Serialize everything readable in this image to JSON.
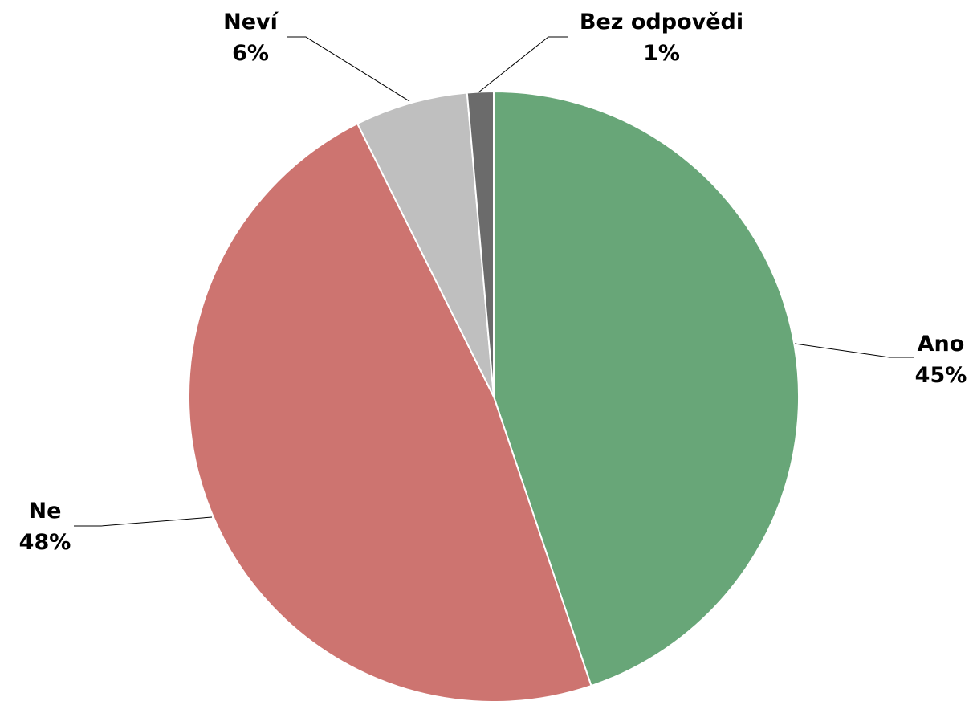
{
  "chart_data": {
    "type": "pie",
    "title": "",
    "slices": [
      {
        "name": "Ano",
        "value": 45,
        "label": "45%",
        "color": "#68a678"
      },
      {
        "name": "Ne",
        "value": 48,
        "label": "48%",
        "color": "#cd7470"
      },
      {
        "name": "Neví",
        "value": 6,
        "label": "6%",
        "color": "#bfbfbf"
      },
      {
        "name": "Bez odpovědi",
        "value": 1.4,
        "label": "1%",
        "color": "#6b6b6b"
      }
    ],
    "start_angle": "12 o'clock",
    "direction": "clockwise",
    "legend": "none",
    "data_labels": "outside with leader lines"
  }
}
